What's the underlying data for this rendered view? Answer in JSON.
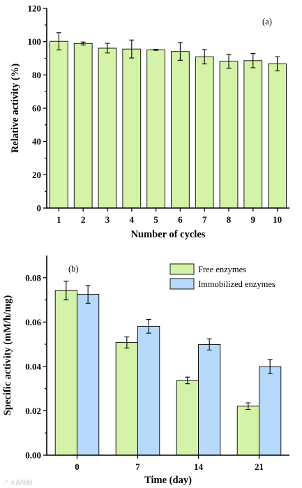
{
  "chart_data": [
    {
      "type": "bar",
      "panel_label": "(a)",
      "xlabel": "Number of cycles",
      "ylabel": "Relative activity (%)",
      "ylim": [
        0,
        120
      ],
      "yticks": [
        "0",
        "20",
        "40",
        "60",
        "80",
        "100",
        "120"
      ],
      "categories": [
        "1",
        "2",
        "3",
        "4",
        "5",
        "6",
        "7",
        "8",
        "9",
        "10"
      ],
      "series": [
        {
          "values": [
            100.2,
            98.9,
            96.1,
            95.6,
            95.1,
            94.1,
            90.9,
            88.2,
            88.6,
            86.7
          ],
          "errors": [
            5.2,
            0.9,
            2.9,
            5.4,
            0.3,
            5.3,
            4.3,
            4.2,
            4.3,
            4.3
          ],
          "color": "#d4f2a8"
        }
      ],
      "grid": false
    },
    {
      "type": "bar",
      "panel_label": "(b)",
      "xlabel": "Time (day)",
      "ylabel": "Specific activity (mM/h/mg)",
      "ylim": [
        0,
        0.09
      ],
      "yticks": [
        "0.00",
        "0.02",
        "0.04",
        "0.06",
        "0.08"
      ],
      "categories": [
        "0",
        "7",
        "14",
        "21"
      ],
      "series": [
        {
          "name": "Free enzymes",
          "values": [
            0.0742,
            0.0508,
            0.0337,
            0.0221
          ],
          "errors": [
            0.0042,
            0.0025,
            0.0015,
            0.0015
          ],
          "color": "#d4f2a8"
        },
        {
          "name": "Immobilized enzymes",
          "values": [
            0.0725,
            0.0581,
            0.0499,
            0.0399
          ],
          "errors": [
            0.004,
            0.0031,
            0.0025,
            0.0032
          ],
          "color": "#b7d9fb"
        }
      ],
      "legend": "top-right",
      "grid": false
    }
  ],
  "watermark": "↗ 大面规图"
}
